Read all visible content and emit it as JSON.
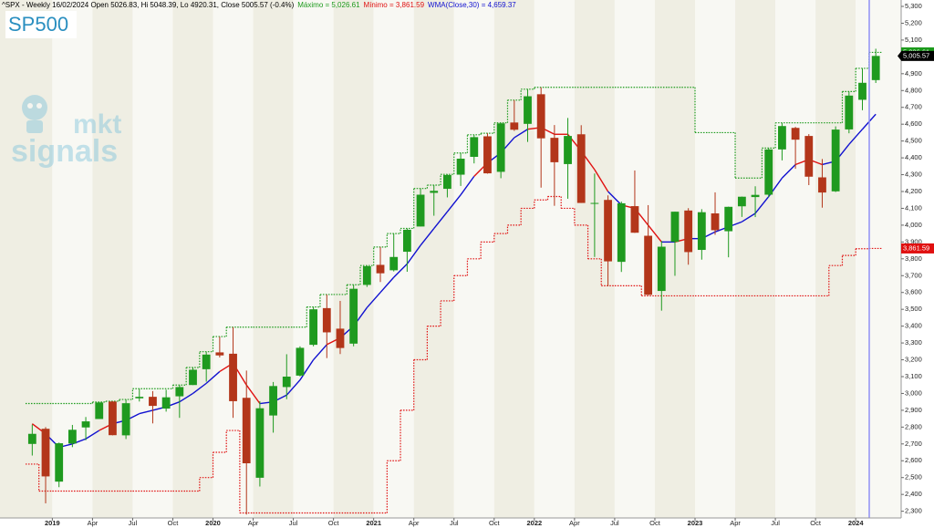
{
  "chart_data": {
    "type": "candlestick",
    "title": "SP500",
    "info_line": "^SPX - Weekly 16/02/2024 Open 5026.83, Hi 5048.39, Lo 4920.31, Close 5005.57 (-0.4%)",
    "watermark": [
      "mkt",
      "signals"
    ],
    "categories": [
      null,
      null,
      "2019",
      null,
      null,
      "Apr",
      null,
      null,
      "Jul",
      null,
      null,
      "Oct",
      null,
      null,
      "2020",
      null,
      null,
      "Apr",
      null,
      null,
      "Jul",
      null,
      null,
      "Oct",
      null,
      null,
      "2021",
      null,
      null,
      "Apr",
      null,
      null,
      "Jul",
      null,
      null,
      "Oct",
      null,
      null,
      "2022",
      null,
      null,
      "Apr",
      null,
      null,
      "Jul",
      null,
      null,
      "Oct",
      null,
      null,
      "2023",
      null,
      null,
      "Apr",
      null,
      null,
      "Jul",
      null,
      null,
      "Oct",
      null,
      null,
      "2024",
      null
    ],
    "candles": {
      "open": [
        2700,
        2790,
        2476,
        2702,
        2798,
        2848,
        2952,
        2751,
        2971,
        2980,
        2910,
        2983,
        3050,
        3144,
        3244,
        3236,
        2974,
        2499,
        2869,
        3038,
        3106,
        3289,
        3507,
        3385,
        3296,
        3645,
        3764,
        3732,
        3842,
        3992,
        4192,
        4216,
        4300,
        4406,
        4528,
        4317,
        4610,
        4602,
        4778,
        4519,
        4363,
        4540,
        4131,
        4150,
        3782,
        4113,
        3937,
        3609,
        3901,
        4087,
        3853,
        4070,
        3964,
        4112,
        4167,
        4181,
        4450,
        4578,
        4530,
        4284,
        4201,
        4569,
        4745,
        4862
      ],
      "high": [
        2815,
        2800,
        2708,
        2813,
        2860,
        2949,
        2954,
        2964,
        3028,
        3014,
        3022,
        3050,
        3154,
        3248,
        3338,
        3394,
        3136,
        2954,
        3068,
        3233,
        3280,
        3514,
        3588,
        3550,
        3646,
        3760,
        3870,
        3950,
        3981,
        4218,
        4238,
        4302,
        4429,
        4537,
        4546,
        4608,
        4743,
        4808,
        4819,
        4595,
        4637,
        4594,
        4307,
        4177,
        4140,
        4325,
        4119,
        3906,
        4080,
        4101,
        4095,
        4195,
        4110,
        4170,
        4231,
        4458,
        4608,
        4584,
        4541,
        4393,
        4587,
        4794,
        4932,
        5048.39
      ],
      "low": [
        2631,
        2347,
        2443,
        2681,
        2722,
        2848,
        2751,
        2729,
        2952,
        2822,
        2892,
        2855,
        3050,
        3070,
        3214,
        2855,
        2280,
        2447,
        2767,
        2966,
        3101,
        3280,
        3210,
        3234,
        3280,
        3633,
        3662,
        3725,
        3723,
        3992,
        4056,
        4165,
        4233,
        4367,
        4306,
        4279,
        4560,
        4495,
        4223,
        4115,
        4157,
        4132,
        3811,
        3637,
        3722,
        3954,
        3584,
        3492,
        3699,
        3765,
        3795,
        3943,
        3809,
        4049,
        4048,
        4166,
        4385,
        4335,
        4238,
        4104,
        4197,
        4546,
        4683,
        4845
      ],
      "close": [
        2760,
        2507,
        2704,
        2784,
        2834,
        2946,
        2752,
        2942,
        2980,
        2926,
        2977,
        3038,
        3141,
        3231,
        3226,
        2954,
        2585,
        2912,
        3044,
        3100,
        3271,
        3500,
        3363,
        3270,
        3622,
        3756,
        3714,
        3811,
        3973,
        4181,
        4204,
        4298,
        4395,
        4523,
        4308,
        4605,
        4567,
        4766,
        4516,
        4374,
        4530,
        4132,
        4132,
        3785,
        4130,
        3955,
        3586,
        3872,
        4080,
        3840,
        4077,
        3970,
        4109,
        4169,
        4180,
        4450,
        4589,
        4508,
        4288,
        4194,
        4568,
        4770,
        4846,
        5005.57
      ],
      "close_badge": "5,005.57",
      "up_color": "#1f9a1f",
      "down_color": "#b3361a"
    },
    "series": [
      {
        "name": "Máximo = 5,026.61",
        "badge": "5,026.61",
        "color": "#1c9a1c",
        "style": "dotted",
        "values": [
          2940,
          2940,
          2940,
          2940,
          2940,
          2949,
          2954,
          2964,
          3028,
          3028,
          3028,
          3050,
          3154,
          3248,
          3338,
          3394,
          3394,
          3394,
          3394,
          3394,
          3394,
          3514,
          3588,
          3588,
          3646,
          3760,
          3870,
          3950,
          3981,
          4218,
          4238,
          4302,
          4429,
          4537,
          4546,
          4608,
          4743,
          4808,
          4819,
          4819,
          4819,
          4819,
          4819,
          4819,
          4819,
          4819,
          4819,
          4819,
          4819,
          4819,
          4550,
          4550,
          4550,
          4280,
          4280,
          4458,
          4608,
          4608,
          4608,
          4608,
          4608,
          4794,
          4932,
          5026.61
        ]
      },
      {
        "name": "Mínimo = 3,861.59",
        "badge": "3,861.59",
        "color": "#e01010",
        "style": "dotted",
        "values": [
          2580,
          2420,
          2420,
          2420,
          2420,
          2420,
          2420,
          2420,
          2420,
          2420,
          2420,
          2420,
          2420,
          2500,
          2650,
          2780,
          2290,
          2290,
          2290,
          2290,
          2290,
          2290,
          2290,
          2290,
          2290,
          2290,
          2290,
          2600,
          2900,
          3200,
          3400,
          3550,
          3700,
          3800,
          3900,
          3950,
          4000,
          4100,
          4150,
          4170,
          4100,
          4000,
          3800,
          3640,
          3640,
          3640,
          3580,
          3580,
          3580,
          3580,
          3580,
          3580,
          3580,
          3580,
          3580,
          3580,
          3580,
          3580,
          3580,
          3580,
          3760,
          3820,
          3860,
          3861.59
        ]
      },
      {
        "name": "WMA(Close,30) = 4,659.37",
        "color": "#1010d0",
        "below_color": "#e01010",
        "style": "solid",
        "values": [
          2820,
          2760,
          2680,
          2700,
          2730,
          2780,
          2820,
          2840,
          2880,
          2900,
          2920,
          2950,
          3000,
          3060,
          3130,
          3180,
          3050,
          2940,
          2950,
          2990,
          3080,
          3200,
          3290,
          3330,
          3400,
          3510,
          3600,
          3690,
          3770,
          3880,
          3980,
          4080,
          4180,
          4290,
          4370,
          4430,
          4520,
          4570,
          4580,
          4540,
          4540,
          4440,
          4330,
          4200,
          4120,
          4100,
          4000,
          3900,
          3900,
          3920,
          3920,
          3960,
          3990,
          4020,
          4070,
          4170,
          4280,
          4360,
          4390,
          4360,
          4380,
          4480,
          4570,
          4659.37
        ]
      }
    ],
    "ylim": [
      2260,
      5338
    ],
    "yticks": [
      {
        "value": 2300,
        "label": "2,300"
      },
      {
        "value": 2400,
        "label": "2,400"
      },
      {
        "value": 2500,
        "label": "2,500"
      },
      {
        "value": 2600,
        "label": "2,600"
      },
      {
        "value": 2700,
        "label": "2,700"
      },
      {
        "value": 2800,
        "label": "2,800"
      },
      {
        "value": 2900,
        "label": "2,900"
      },
      {
        "value": 3000,
        "label": "3,000"
      },
      {
        "value": 3100,
        "label": "3,100"
      },
      {
        "value": 3200,
        "label": "3,200"
      },
      {
        "value": 3300,
        "label": "3,300"
      },
      {
        "value": 3400,
        "label": "3,400"
      },
      {
        "value": 3500,
        "label": "3,500"
      },
      {
        "value": 3600,
        "label": "3,600"
      },
      {
        "value": 3700,
        "label": "3,700"
      },
      {
        "value": 3800,
        "label": "3,800"
      },
      {
        "value": 3900,
        "label": "3,900"
      },
      {
        "value": 4000,
        "label": "4,000"
      },
      {
        "value": 4100,
        "label": "4,100"
      },
      {
        "value": 4200,
        "label": "4,200"
      },
      {
        "value": 4300,
        "label": "4,300"
      },
      {
        "value": 4400,
        "label": "4,400"
      },
      {
        "value": 4500,
        "label": "4,500"
      },
      {
        "value": 4600,
        "label": "4,600"
      },
      {
        "value": 4700,
        "label": "4,700"
      },
      {
        "value": 4800,
        "label": "4,800"
      },
      {
        "value": 4900,
        "label": "4,900"
      },
      {
        "value": 5000,
        "label": "5,000"
      },
      {
        "value": 5100,
        "label": "5,100"
      },
      {
        "value": 5200,
        "label": "5,200"
      },
      {
        "value": 5300,
        "label": "5,300"
      }
    ],
    "band_colors": [
      "#f8f8f3",
      "#efeee3"
    ],
    "grid": false
  }
}
